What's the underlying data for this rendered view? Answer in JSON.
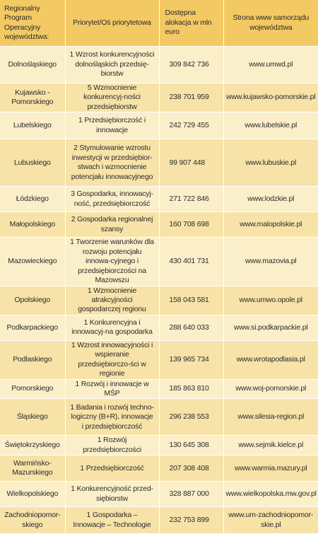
{
  "headers": {
    "program": "Regionalny Program Operacyjny województwa:",
    "priority": "Priorytet/Oś priorytetowa",
    "allocation": "Dostępna alokacja w mln euro",
    "website": "Strona www samorządu województwa"
  },
  "rows": [
    {
      "region": "Dolnośląskiego",
      "priority": "1 Wzrost konkurencyjności dolnośląskich przedsię-biorstw",
      "amount": "309 842 736",
      "site": "www.umwd.pl"
    },
    {
      "region": "Kujawsko - Pomorskiego",
      "priority": "5 Wzmocnienie konkurencyj-ności przedsiębiorstw",
      "amount": "238 701 959",
      "site": "www.kujawsko-pomorskie.pl"
    },
    {
      "region": "Lubelskiego",
      "priority": "1 Przedsiębiorczość i innowacje",
      "amount": "242 729 455",
      "site": "www.lubelskie.pl"
    },
    {
      "region": "Lubuskiego",
      "priority": "2 Stymulowanie wzrostu inwestycji w przedsiębior-stwach i wzmocnienie potencjału innowacyjnego",
      "amount": "99 907 448",
      "site": "www.lubuskie.pl"
    },
    {
      "region": "Łódzkiego",
      "priority": "3 Gospodarka, innowacyj-ność, przedsiębiorczość",
      "amount": "271 722 846",
      "site": "www.lodzkie.pl"
    },
    {
      "region": "Małopolskiego",
      "priority": "2 Gospodarka regionalnej szansy",
      "amount": "160 708 698",
      "site": "www.malopolskie.pl"
    },
    {
      "region": "Mazowieckiego",
      "priority": "1 Tworzenie warunków dla rozwoju potencjału innowa-cyjnego i przedsiębiorczości na Mazowszu",
      "amount": "430 401 731",
      "site": "www.mazovia.pl"
    },
    {
      "region": "Opolskiego",
      "priority": "1 Wzmocnienie atrakcyjności gospodarczej regionu",
      "amount": "158 043 581",
      "site": "www.umwo.opole.pl"
    },
    {
      "region": "Podkarpackiego",
      "priority": "1 Konkurencyjna i innowacyj-na gospodarka",
      "amount": "288 640 033",
      "site": "www.si.podkarpackie.pl"
    },
    {
      "region": "Podlaskiego",
      "priority": "1 Wzrost innowacyjności i wspieranie przedsiębiorczo-ści w regionie",
      "amount": "139 965 734",
      "site": "www.wrotapodlasia.pl"
    },
    {
      "region": "Pomorskiego",
      "priority": "1 Rozwój i innowacje w MŚP",
      "amount": "185 863 810",
      "site": "www.woj-pomorskie.pl"
    },
    {
      "region": "Śląskiego",
      "priority": "1 Badania i rozwój techno-logiczny (B+R), innowacje i przedsiębiorczość",
      "amount": "296 238 553",
      "site": "www.silesia-region.pl"
    },
    {
      "region": "Świętokrzyskiego",
      "priority": "1 Rozwój przedsiębiorczości",
      "amount": "130 645 308",
      "site": "www.sejmik.kielce.pl"
    },
    {
      "region": "Warmińsko-Mazurskiego",
      "priority": "1 Przedsiębiorczość",
      "amount": "207 308 408",
      "site": "www.warmia.mazury.pl"
    },
    {
      "region": "Wielkopolskiego",
      "priority": "1 Konkurencyjność przed-siębiorstw",
      "amount": "328 887 000",
      "site": "www.wielkopolska.mw.gov.pl"
    },
    {
      "region": "Zachodniopomor-skiego",
      "priority": "1 Gospodarka – Innowacje – Technologie",
      "amount": "232 753 899",
      "site": "www.um-zachodniopomor-skie.pl"
    }
  ]
}
